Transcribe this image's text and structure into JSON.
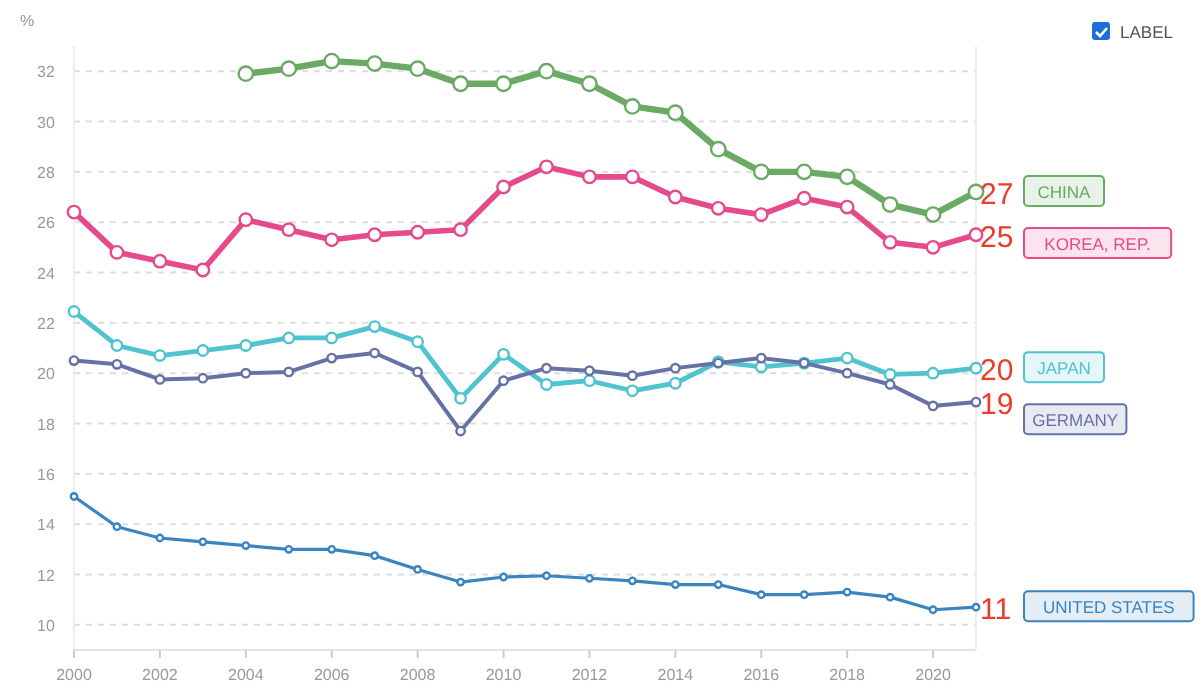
{
  "chart_data": {
    "type": "line",
    "ylabel": "%",
    "x": [
      2000,
      2001,
      2002,
      2003,
      2004,
      2005,
      2006,
      2007,
      2008,
      2009,
      2010,
      2011,
      2012,
      2013,
      2014,
      2015,
      2016,
      2017,
      2018,
      2019,
      2020,
      2021
    ],
    "xlim": [
      2000,
      2021
    ],
    "xticks": [
      2000,
      2002,
      2004,
      2006,
      2008,
      2010,
      2012,
      2014,
      2016,
      2018,
      2020
    ],
    "ylim": [
      9,
      33
    ],
    "yticks": [
      10,
      12,
      14,
      16,
      18,
      20,
      22,
      24,
      26,
      28,
      30,
      32
    ],
    "grid": "y",
    "marker": "circle",
    "line_style": "solid",
    "legend": "right",
    "series": [
      {
        "name": "CHINA",
        "color": "#6aaa64",
        "values": [
          null,
          null,
          null,
          null,
          31.9,
          32.1,
          32.4,
          32.3,
          32.1,
          31.5,
          31.5,
          32.0,
          31.5,
          30.6,
          30.35,
          28.9,
          28.0,
          28.0,
          27.8,
          26.7,
          26.3,
          27.2
        ],
        "value_labels": [
          null,
          null,
          null,
          null,
          null,
          null,
          null,
          null,
          null,
          null,
          null,
          null,
          null,
          null,
          null,
          null,
          null,
          null,
          null,
          null,
          null,
          "27"
        ]
      },
      {
        "name": "KOREA, REP.",
        "color": "#e54a8a",
        "values": [
          26.4,
          24.8,
          24.45,
          24.1,
          26.1,
          25.7,
          25.3,
          25.5,
          25.6,
          25.7,
          27.4,
          28.2,
          27.8,
          27.8,
          27.0,
          26.55,
          26.3,
          26.95,
          26.6,
          25.2,
          25.0,
          25.5
        ],
        "value_labels": [
          null,
          null,
          null,
          null,
          null,
          null,
          null,
          null,
          null,
          null,
          null,
          null,
          null,
          null,
          null,
          null,
          null,
          null,
          null,
          null,
          null,
          "25"
        ]
      },
      {
        "name": "JAPAN",
        "color": "#4fc3cf",
        "values": [
          22.45,
          21.1,
          20.7,
          20.9,
          21.1,
          21.4,
          21.4,
          21.85,
          21.25,
          19.0,
          20.75,
          19.55,
          19.7,
          19.3,
          19.6,
          20.45,
          20.25,
          20.4,
          20.6,
          19.95,
          20.0,
          20.2
        ],
        "value_labels": [
          null,
          null,
          null,
          null,
          null,
          null,
          null,
          null,
          null,
          null,
          null,
          null,
          null,
          null,
          null,
          null,
          null,
          null,
          null,
          null,
          null,
          "20"
        ]
      },
      {
        "name": "GERMANY",
        "color": "#6672a6",
        "values": [
          20.5,
          20.35,
          19.75,
          19.8,
          20.0,
          20.05,
          20.6,
          20.8,
          20.05,
          17.7,
          19.7,
          20.2,
          20.1,
          19.9,
          20.2,
          20.4,
          20.6,
          20.4,
          20.0,
          19.55,
          18.7,
          18.85
        ],
        "value_labels": [
          null,
          null,
          null,
          null,
          null,
          null,
          null,
          null,
          null,
          null,
          null,
          null,
          null,
          null,
          null,
          null,
          null,
          null,
          null,
          null,
          null,
          "19"
        ]
      },
      {
        "name": "UNITED STATES",
        "color": "#3a84c0",
        "values": [
          15.1,
          13.9,
          13.45,
          13.3,
          13.15,
          13.0,
          13.0,
          12.75,
          12.2,
          11.7,
          11.9,
          11.95,
          11.85,
          11.75,
          11.6,
          11.6,
          11.2,
          11.2,
          11.3,
          11.1,
          10.6,
          10.7
        ],
        "value_labels": [
          null,
          null,
          null,
          null,
          null,
          null,
          null,
          null,
          null,
          null,
          null,
          null,
          null,
          null,
          null,
          null,
          null,
          null,
          null,
          null,
          null,
          "11"
        ]
      }
    ],
    "annotations": [
      "LABEL"
    ]
  }
}
